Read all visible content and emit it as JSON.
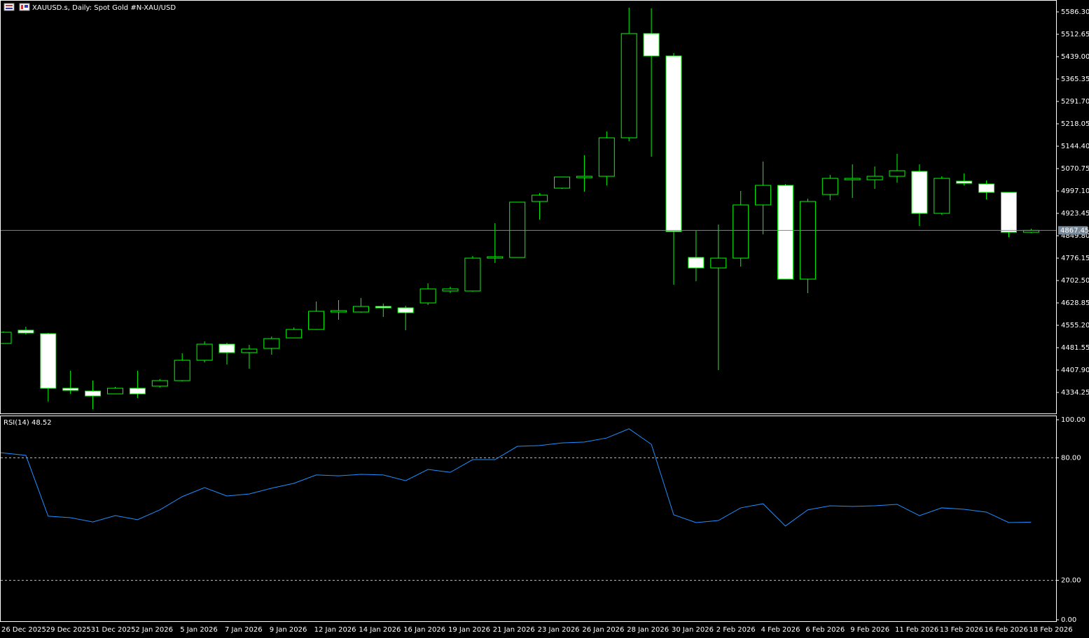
{
  "chart_data": [
    {
      "type": "candlestick",
      "title": "XAUUSD.s, Daily:  Spot Gold #N-XAU/USD",
      "categories": [
        "26 Dec 2025",
        null,
        "29 Dec 2025",
        null,
        "31 Dec 2025",
        null,
        "2 Jan 2026",
        null,
        "5 Jan 2026",
        null,
        "7 Jan 2026",
        null,
        "9 Jan 2026",
        null,
        "12 Jan 2026",
        null,
        "14 Jan 2026",
        null,
        "16 Jan 2026",
        null,
        "19 Jan 2026",
        null,
        "21 Jan 2026",
        null,
        "23 Jan 2026",
        null,
        "26 Jan 2026",
        null,
        "28 Jan 2026",
        null,
        "30 Jan 2026",
        null,
        "2 Feb 2026",
        null,
        "4 Feb 2026",
        null,
        "6 Feb 2026",
        null,
        "9 Feb 2026",
        null,
        "11 Feb 2026",
        null,
        "13 Feb 2026",
        null,
        "16 Feb 2026",
        null,
        "18 Feb 2026"
      ],
      "open": [
        4495.4,
        4539.1,
        4527.6,
        4348.0,
        4338.8,
        4329.6,
        4348.0,
        4355.0,
        4373.3,
        4440.1,
        4493.0,
        4465.4,
        4479.2,
        4513.7,
        4541.4,
        4598.9,
        4598.9,
        4617.3,
        4612.7,
        4628.8,
        4668.0,
        4668.0,
        4776.1,
        4778.4,
        4962.6,
        5006.3,
        5040.8,
        5045.4,
        5172.0,
        5515.0,
        5441.3,
        4778.4,
        4743.9,
        4776.1,
        4951.1,
        5015.5,
        4707.1,
        4985.6,
        5033.9,
        5033.9,
        5045.4,
        5061.5,
        4923.4,
        5029.3,
        5020.1,
        4992.5,
        4861.3
      ],
      "high": [
        4535,
        4550.6,
        4530,
        4405.6,
        4373.3,
        4352.6,
        4405.6,
        4378,
        4463.1,
        4502.2,
        4497.6,
        4490.7,
        4518.3,
        4548,
        4633.4,
        4638.0,
        4644.9,
        4626.5,
        4619.6,
        4693.3,
        4682,
        4783,
        4891.2,
        4961,
        4990.2,
        5044,
        5114.5,
        5192.7,
        5600.1,
        5597.8,
        5450.5,
        4865.9,
        4886.6,
        4997.1,
        5093.8,
        5020,
        4971.8,
        5050.0,
        5084.5,
        5077.6,
        5119.1,
        5084.5,
        5045.4,
        5054.6,
        5031.6,
        4993,
        4872.8
      ],
      "low": [
        4494,
        4525.3,
        4304.3,
        4329.6,
        4279.0,
        4329,
        4315.8,
        4350,
        4371,
        4433,
        4426.3,
        4412.5,
        4458.5,
        4513,
        4540,
        4573.6,
        4597,
        4582.8,
        4539.1,
        4622,
        4661,
        4666,
        4760.0,
        4778,
        4902.7,
        5004,
        4994.8,
        5015.5,
        5160.5,
        5109.9,
        4688.7,
        4700.2,
        4407.9,
        4748.5,
        4854.4,
        4707,
        4661.1,
        4967.2,
        4974.1,
        5004.0,
        5024.7,
        4882.0,
        4918.8,
        5015.5,
        4969.5,
        4845.2,
        4859
      ],
      "close": [
        4532.2,
        4529.9,
        4348.0,
        4341.1,
        4322.7,
        4348.0,
        4329.6,
        4373.3,
        4440.1,
        4493.0,
        4465.4,
        4476.9,
        4511.4,
        4541.4,
        4601.2,
        4603.5,
        4617.3,
        4612.7,
        4596.6,
        4674.9,
        4674.9,
        4776.1,
        4780.7,
        4960.3,
        4983.3,
        5043.1,
        5045.4,
        5172.0,
        5515.0,
        5441.3,
        4863.6,
        4743.9,
        4776.1,
        4951.1,
        5015.5,
        4707.1,
        4962.6,
        5038.5,
        5038.5,
        5045.4,
        5063.8,
        4923.4,
        5038.5,
        5022.4,
        4992.5,
        4861.3,
        4867.45
      ],
      "up_color": "#000000",
      "down_color": "#ffffff",
      "edge_color": "#00ff00",
      "last_price": 4867.45,
      "last_price_color": "#778899",
      "ylim": [
        4265.2,
        5623.1
      ],
      "yticks": [
        {
          "value": 5586.3,
          "label": "5586.30"
        },
        5512.65,
        {
          "value": 5439,
          "label": "5439.00"
        },
        5365.35,
        {
          "value": 5291.7,
          "label": "5291.70"
        },
        5218.05,
        {
          "value": 5144.4,
          "label": "5144.40"
        },
        5070.75,
        {
          "value": 4997.1,
          "label": "4997.10"
        },
        4923.45,
        {
          "value": 4849.8,
          "label": "4849.80"
        },
        4776.15,
        {
          "value": 4702.5,
          "label": "4702.50"
        },
        4628.85,
        {
          "value": 4555.2,
          "label": "4555.20"
        },
        4481.55,
        {
          "value": 4407.9,
          "label": "4407.90"
        },
        4334.25
      ]
    },
    {
      "type": "line",
      "title": "RSI(14) 48.52",
      "color": "#1e90ff",
      "values": [
        82.5,
        81.2,
        51.4,
        50.7,
        48.6,
        51.7,
        49.7,
        54.5,
        61.0,
        65.4,
        61.3,
        62.3,
        65.1,
        67.5,
        71.6,
        71.2,
        71.9,
        71.6,
        68.8,
        74.3,
        72.9,
        79.1,
        79.1,
        85.6,
        86.0,
        87.3,
        87.7,
        89.7,
        94.2,
        86.6,
        52.1,
        48.3,
        49.3,
        55.5,
        57.5,
        46.6,
        54.5,
        56.5,
        56.2,
        56.5,
        57.2,
        51.7,
        55.5,
        54.8,
        53.4,
        48.3,
        48.52
      ],
      "ylim": [
        0,
        100
      ],
      "yticks": [
        {
          "value": 100,
          "label": "100.00"
        },
        {
          "value": 80,
          "label": "80.00"
        },
        {
          "value": 20,
          "label": "20.00"
        },
        {
          "value": 0,
          "label": "0.00"
        }
      ]
    }
  ]
}
